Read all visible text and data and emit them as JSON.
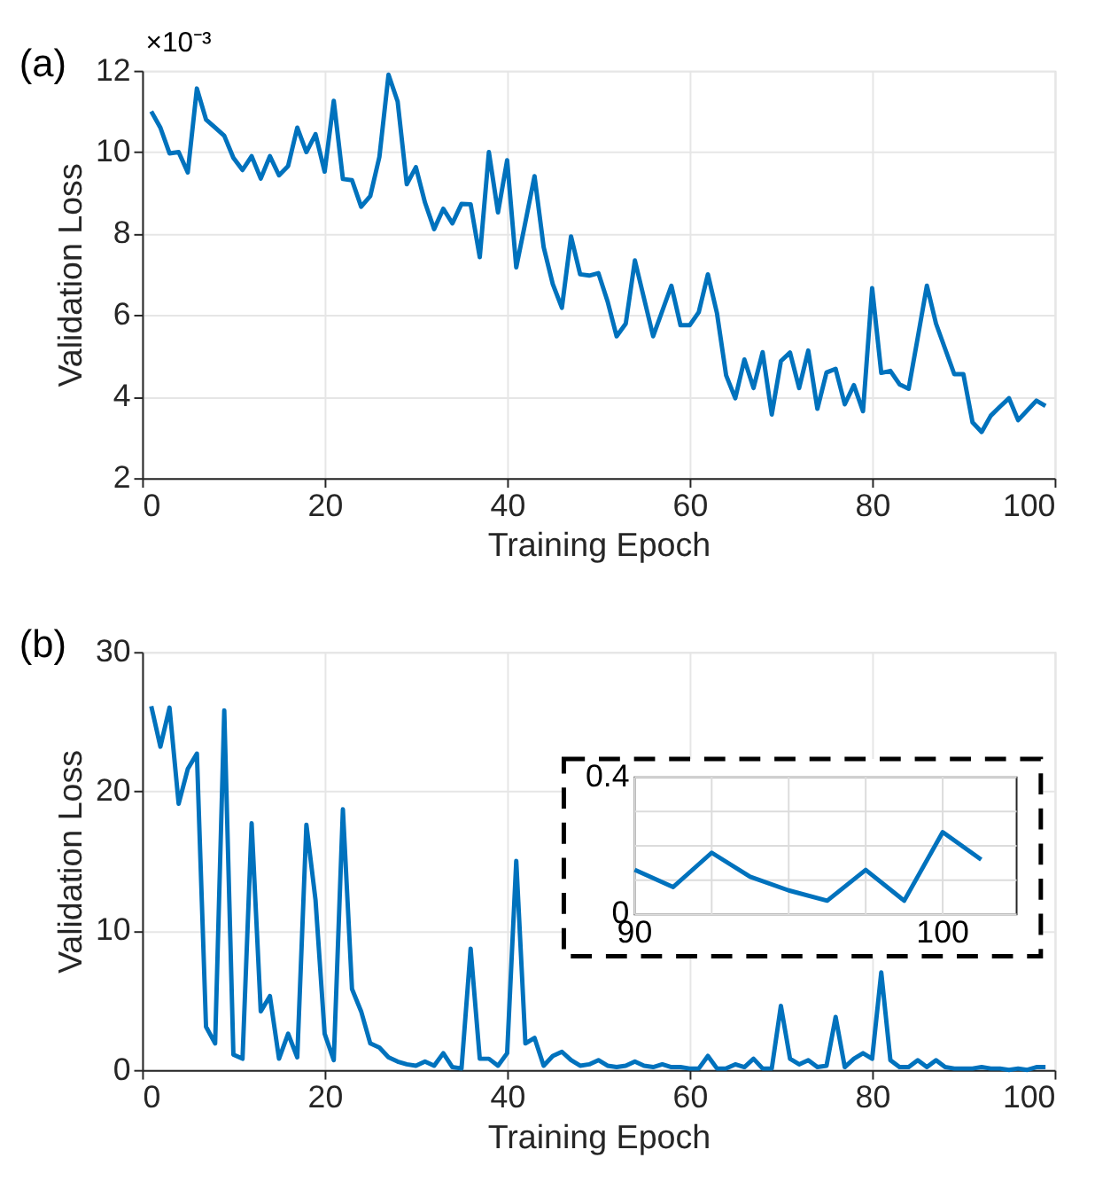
{
  "chart_data": [
    {
      "type": "line",
      "xlabel": "Training Epoch",
      "ylabel": "Validation Loss",
      "annotations": [
        "(a)",
        "×10⁻³"
      ],
      "grid": true,
      "xlim": [
        0,
        100
      ],
      "xticks": [
        0,
        20,
        40,
        60,
        80,
        100
      ],
      "ylim": [
        2,
        12
      ],
      "yticks": [
        2,
        4,
        6,
        8,
        10,
        12
      ],
      "x": [
        1,
        2,
        3,
        4,
        5,
        6,
        7,
        8,
        9,
        10,
        11,
        12,
        13,
        14,
        15,
        16,
        17,
        18,
        19,
        20,
        21,
        22,
        23,
        24,
        25,
        26,
        27,
        28,
        29,
        30,
        31,
        32,
        33,
        34,
        35,
        36,
        37,
        38,
        39,
        40,
        41,
        42,
        43,
        44,
        45,
        46,
        47,
        48,
        49,
        50,
        51,
        52,
        53,
        54,
        55,
        56,
        57,
        58,
        59,
        60,
        61,
        62,
        63,
        64,
        65,
        66,
        67,
        68,
        69,
        70,
        71,
        72,
        73,
        74,
        75,
        76,
        77,
        78,
        79,
        80,
        81,
        82,
        83,
        84,
        85,
        86,
        87,
        88,
        89,
        90,
        91,
        92,
        93,
        94,
        95,
        96,
        97,
        98,
        99
      ],
      "series": [
        {
          "color": "#0072bd",
          "values": [
            11.0,
            10.6,
            9.97,
            10.0,
            9.5,
            11.56,
            10.8,
            10.6,
            10.4,
            9.86,
            9.56,
            9.9,
            9.35,
            9.9,
            9.43,
            9.66,
            10.6,
            10.0,
            10.44,
            9.52,
            11.26,
            9.34,
            9.31,
            8.66,
            8.92,
            9.88,
            11.9,
            11.24,
            9.21,
            9.63,
            8.76,
            8.11,
            8.61,
            8.25,
            8.73,
            8.72,
            7.42,
            10.0,
            8.52,
            9.8,
            7.17,
            8.28,
            9.41,
            7.67,
            6.76,
            6.18,
            7.93,
            7.0,
            6.97,
            7.03,
            6.34,
            5.48,
            5.79,
            7.34,
            6.41,
            5.48,
            6.1,
            6.72,
            5.75,
            5.75,
            6.07,
            7.0,
            6.04,
            4.52,
            3.96,
            4.91,
            4.21,
            5.09,
            3.56,
            4.87,
            5.08,
            4.21,
            5.13,
            3.7,
            4.59,
            4.68,
            3.81,
            4.28,
            3.64,
            6.66,
            4.58,
            4.63,
            4.3,
            4.19,
            5.45,
            6.72,
            5.79,
            5.17,
            4.55,
            4.55,
            3.37,
            3.13,
            3.53,
            3.75,
            3.96,
            3.42,
            3.66,
            3.9,
            3.77
          ]
        }
      ]
    },
    {
      "type": "line",
      "xlabel": "Training Epoch",
      "ylabel": "Validation Loss",
      "annotations": [
        "(b)"
      ],
      "grid": true,
      "xlim": [
        0,
        100
      ],
      "xticks": [
        0,
        20,
        40,
        60,
        80,
        100
      ],
      "ylim": [
        0,
        30
      ],
      "yticks": [
        0,
        10,
        20,
        30
      ],
      "x": [
        1,
        2,
        3,
        4,
        5,
        6,
        7,
        8,
        9,
        10,
        11,
        12,
        13,
        14,
        15,
        16,
        17,
        18,
        19,
        20,
        21,
        22,
        23,
        24,
        25,
        26,
        27,
        28,
        29,
        30,
        31,
        32,
        33,
        34,
        35,
        36,
        37,
        38,
        39,
        40,
        41,
        42,
        43,
        44,
        45,
        46,
        47,
        48,
        49,
        50,
        51,
        52,
        53,
        54,
        55,
        56,
        57,
        58,
        59,
        60,
        61,
        62,
        63,
        64,
        65,
        66,
        67,
        68,
        69,
        70,
        71,
        72,
        73,
        74,
        75,
        76,
        77,
        78,
        79,
        80,
        81,
        82,
        83,
        84,
        85,
        86,
        87,
        88,
        89,
        90,
        91,
        92,
        93,
        94,
        95,
        96,
        97,
        98,
        99
      ],
      "series": [
        {
          "color": "#0072bd",
          "values": [
            26.1,
            23.2,
            26.0,
            19.1,
            21.6,
            22.7,
            3.1,
            1.9,
            25.8,
            1.1,
            0.8,
            17.7,
            4.2,
            5.3,
            0.8,
            2.6,
            0.9,
            17.6,
            12.2,
            2.6,
            0.7,
            18.7,
            5.8,
            4.2,
            1.9,
            1.6,
            0.9,
            0.6,
            0.4,
            0.3,
            0.6,
            0.3,
            1.2,
            0.2,
            0.1,
            8.7,
            0.8,
            0.8,
            0.3,
            1.2,
            15.0,
            1.9,
            2.3,
            0.3,
            1.0,
            1.3,
            0.7,
            0.3,
            0.4,
            0.7,
            0.3,
            0.2,
            0.3,
            0.6,
            0.3,
            0.2,
            0.4,
            0.2,
            0.2,
            0.1,
            0.1,
            1.0,
            0.1,
            0.1,
            0.4,
            0.2,
            0.8,
            0.1,
            0.1,
            4.6,
            0.8,
            0.4,
            0.7,
            0.2,
            0.3,
            3.8,
            0.2,
            0.8,
            1.2,
            0.8,
            7.0,
            0.7,
            0.2,
            0.2,
            0.7,
            0.2,
            0.7,
            0.2,
            0.1,
            0.1,
            0.1,
            0.2,
            0.1,
            0.1,
            0.0,
            0.1,
            0.0,
            0.2,
            0.2
          ]
        }
      ]
    },
    {
      "type": "line",
      "grid": true,
      "xlim": [
        90,
        102.4
      ],
      "xticks": [
        90,
        {
          "value": 92.5,
          "label": null
        },
        {
          "value": 95,
          "label": null
        },
        {
          "value": 97.5,
          "label": null
        },
        100
      ],
      "ylim": [
        0,
        0.4
      ],
      "yticks": [
        0,
        {
          "value": 0.1,
          "label": null
        },
        {
          "value": 0.2,
          "label": null
        },
        {
          "value": 0.3,
          "label": null
        },
        0.4
      ],
      "x": [
        90,
        91.25,
        92.5,
        93.75,
        95,
        96.25,
        97.5,
        98.75,
        100,
        101.25
      ],
      "series": [
        {
          "color": "#0072bd",
          "values": [
            0.13,
            0.08,
            0.18,
            0.11,
            0.07,
            0.04,
            0.13,
            0.04,
            0.24,
            0.16
          ]
        }
      ]
    }
  ]
}
